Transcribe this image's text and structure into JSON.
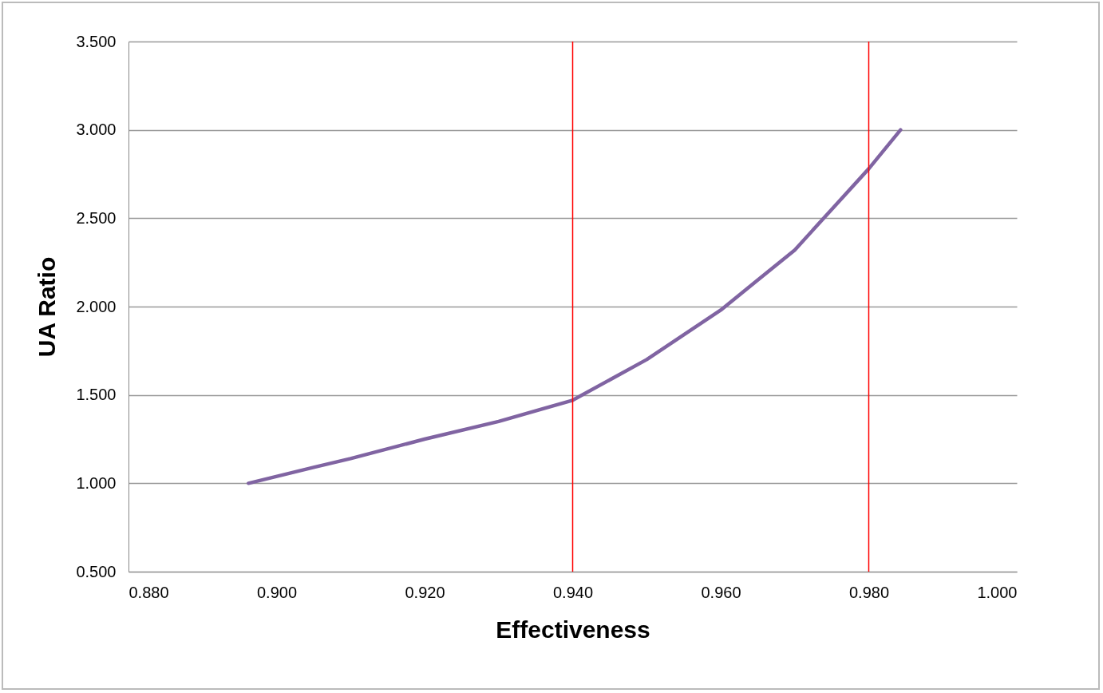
{
  "chart_data": {
    "type": "line",
    "xlabel": "Effectiveness",
    "ylabel": "UA Ratio",
    "x": [
      0.8962,
      0.905,
      0.91,
      0.92,
      0.93,
      0.94,
      0.95,
      0.96,
      0.965,
      0.97,
      0.975,
      0.98,
      0.9843
    ],
    "series": [
      {
        "color": "#8064a2",
        "values": [
          1.0,
          1.09,
          1.14,
          1.25,
          1.35,
          1.47,
          1.7,
          1.98,
          2.15,
          2.32,
          2.55,
          2.78,
          3.0
        ]
      }
    ],
    "xlim": [
      0.88,
      1.0
    ],
    "ylim": [
      0.5,
      3.5
    ],
    "xticks": [
      {
        "value": 0.88,
        "label": "0.880"
      },
      {
        "value": 0.9,
        "label": "0.900"
      },
      {
        "value": 0.92,
        "label": "0.920"
      },
      {
        "value": 0.94,
        "label": "0.940"
      },
      {
        "value": 0.96,
        "label": "0.960"
      },
      {
        "value": 0.98,
        "label": "0.980"
      },
      {
        "value": 1.0,
        "label": "1.000"
      }
    ],
    "yticks": [
      {
        "value": 0.5,
        "label": "0.500"
      },
      {
        "value": 1.0,
        "label": "1.000"
      },
      {
        "value": 1.5,
        "label": "1.500"
      },
      {
        "value": 2.0,
        "label": "2.000"
      },
      {
        "value": 2.5,
        "label": "2.500"
      },
      {
        "value": 3.0,
        "label": "3.000"
      },
      {
        "value": 3.5,
        "label": "3.500"
      }
    ],
    "ref_lines": [
      {
        "axis": "x",
        "value": 0.94,
        "color": "#ff0000"
      },
      {
        "axis": "x",
        "value": 0.98,
        "color": "#ff0000"
      }
    ],
    "grid": "y",
    "marker": "none",
    "line_style": "solid"
  }
}
